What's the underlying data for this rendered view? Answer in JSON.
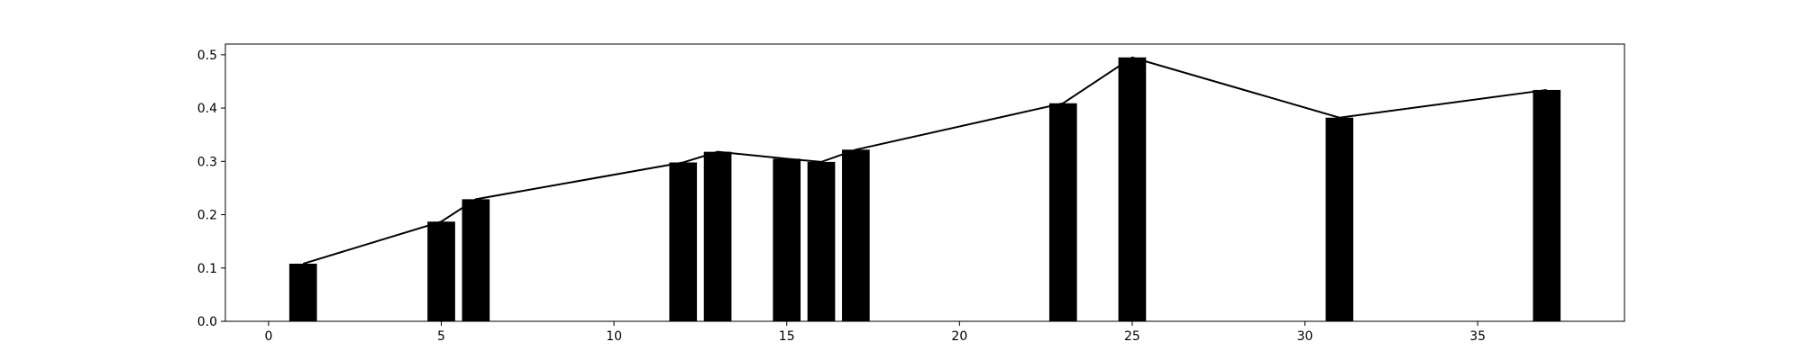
{
  "chart_data": {
    "type": "bar",
    "title": "",
    "xlabel": "",
    "ylabel": "",
    "xlim": [
      -1.25,
      39.25
    ],
    "ylim": [
      0,
      0.52
    ],
    "grid": false,
    "x_ticks": [
      0,
      5,
      10,
      15,
      20,
      25,
      30,
      35
    ],
    "y_ticks": [
      0.0,
      0.1,
      0.2,
      0.3,
      0.4,
      0.5
    ],
    "y_tick_labels": [
      "0.0",
      "0.1",
      "0.2",
      "0.3",
      "0.4",
      "0.5"
    ],
    "bar_color": "#000000",
    "line_color": "#000000",
    "bar_width": 0.8,
    "x": [
      1,
      5,
      6,
      12,
      13,
      15,
      16,
      17,
      23,
      25,
      31,
      37
    ],
    "values": [
      0.108,
      0.187,
      0.229,
      0.298,
      0.318,
      0.305,
      0.299,
      0.322,
      0.409,
      0.495,
      0.382,
      0.434
    ],
    "overlay_line": {
      "type": "line",
      "x": [
        1,
        5,
        6,
        12,
        13,
        15,
        16,
        17,
        23,
        25,
        31,
        37
      ],
      "values": [
        0.108,
        0.187,
        0.229,
        0.298,
        0.318,
        0.305,
        0.299,
        0.322,
        0.409,
        0.495,
        0.382,
        0.434
      ]
    }
  }
}
